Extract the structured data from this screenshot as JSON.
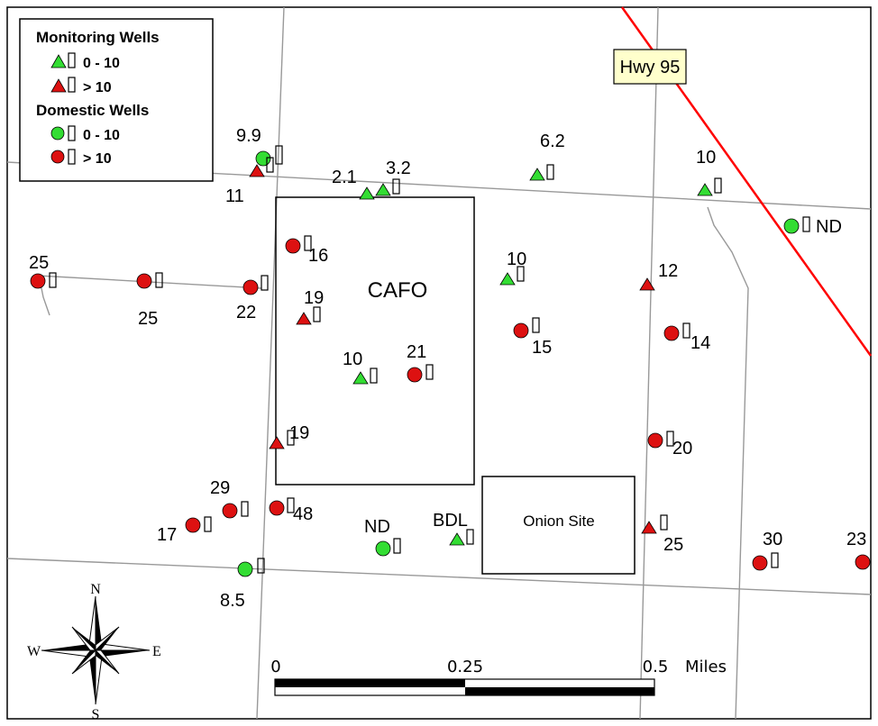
{
  "legend": {
    "monitoring_title": "Monitoring Wells",
    "monitoring_low": "0 - 10",
    "monitoring_high": "> 10",
    "domestic_title": "Domestic Wells",
    "domestic_low": "0 - 10",
    "domestic_high": "> 10"
  },
  "colors": {
    "low": "#33dd33",
    "high": "#dd1111",
    "highway": "#ff0000",
    "road": "#999999",
    "highway_label_bg": "#ffffcc"
  },
  "highway_label": "Hwy 95",
  "areas": {
    "cafo": "CAFO",
    "onion": "Onion Site"
  },
  "wells": {
    "monitoring": [
      {
        "value": "2.1",
        "level": "low"
      },
      {
        "value": "3.2",
        "level": "low"
      },
      {
        "value": "6.2",
        "level": "low"
      },
      {
        "value": "10",
        "level": "low"
      },
      {
        "value": "11",
        "level": "high"
      },
      {
        "value": "10",
        "level": "low"
      },
      {
        "value": "12",
        "level": "high"
      },
      {
        "value": "19",
        "level": "high"
      },
      {
        "value": "10",
        "level": "low"
      },
      {
        "value": "19",
        "level": "high"
      },
      {
        "value": "BDL",
        "level": "low"
      },
      {
        "value": "25",
        "level": "high"
      }
    ],
    "domestic": [
      {
        "value": "9.9",
        "level": "low"
      },
      {
        "value": "ND",
        "level": "low"
      },
      {
        "value": "25",
        "level": "high"
      },
      {
        "value": "25",
        "level": "high"
      },
      {
        "value": "22",
        "level": "high"
      },
      {
        "value": "16",
        "level": "high"
      },
      {
        "value": "15",
        "level": "high"
      },
      {
        "value": "14",
        "level": "high"
      },
      {
        "value": "21",
        "level": "high"
      },
      {
        "value": "20",
        "level": "high"
      },
      {
        "value": "29",
        "level": "high"
      },
      {
        "value": "17",
        "level": "high"
      },
      {
        "value": "48",
        "level": "high"
      },
      {
        "value": "ND",
        "level": "low"
      },
      {
        "value": "8.5",
        "level": "low"
      },
      {
        "value": "30",
        "level": "high"
      },
      {
        "value": "23",
        "level": "high"
      }
    ]
  },
  "compass": {
    "n": "N",
    "s": "S",
    "e": "E",
    "w": "W"
  },
  "scale_bar": {
    "tick0": "0",
    "tick1": "0.25",
    "tick2": "0.5",
    "unit": "Miles"
  }
}
